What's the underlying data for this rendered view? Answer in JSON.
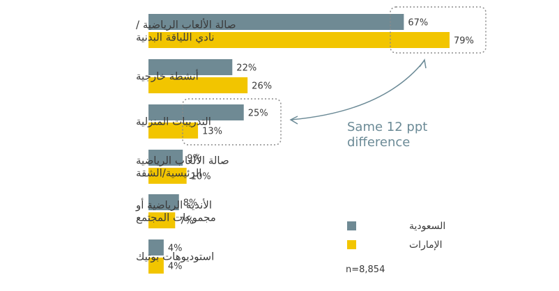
{
  "chart_data": {
    "type": "bar",
    "orientation": "horizontal",
    "categories": [
      [
        "صالة الألعاب الرياضية /",
        "نادي اللياقة البدنية"
      ],
      [
        "أنشطة خارجية"
      ],
      [
        "التدريبات المنزلية"
      ],
      [
        "صالة الألعاب الرياضية",
        "الرئيسية/الشقة"
      ],
      [
        "الأندية الرياضية أو",
        "مجموعات المجتمع"
      ],
      [
        "استوديوهات بوتيك"
      ]
    ],
    "series": [
      {
        "name": "السعودية",
        "color": "#6f8a94",
        "values": [
          67,
          22,
          25,
          9,
          8,
          4
        ]
      },
      {
        "name": "الإمارات",
        "color": "#f2c500",
        "values": [
          79,
          26,
          13,
          10,
          7,
          4
        ]
      }
    ],
    "value_suffix": "%",
    "xlim": [
      0,
      79
    ],
    "grid": false,
    "legend_position": "bottom-right",
    "annotation": {
      "lines": [
        "Same 12 ppt",
        "difference"
      ],
      "color": "#6b8a96"
    },
    "note": "n=8,854"
  }
}
